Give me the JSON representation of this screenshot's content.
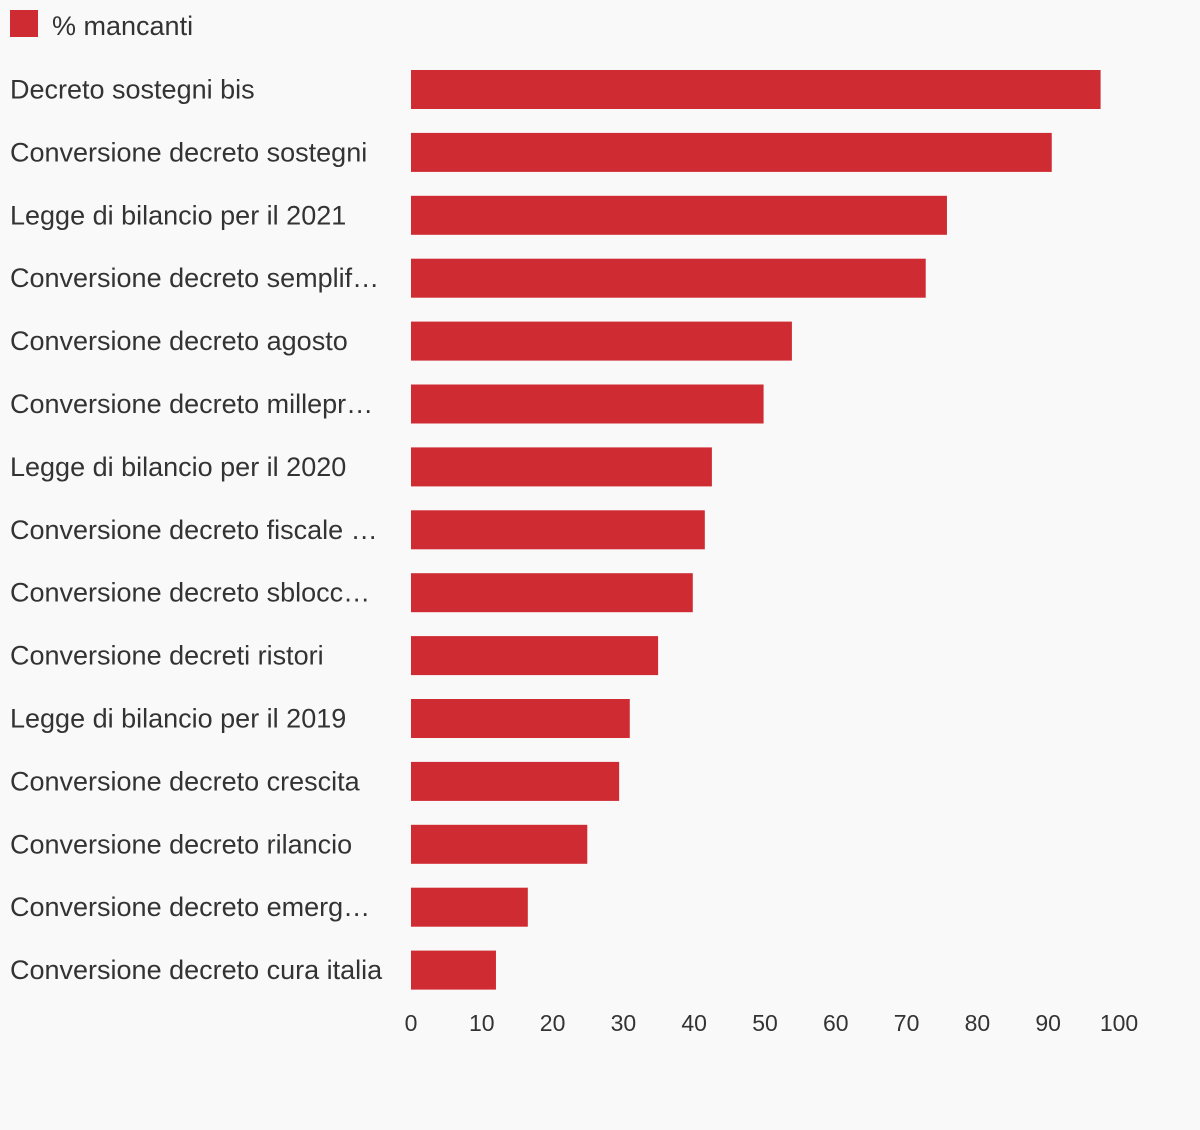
{
  "colors": {
    "background": "#f9f9f9",
    "bar": "#cf2b32",
    "text": "#333333"
  },
  "legend": {
    "label": "% mancanti"
  },
  "chart_data": {
    "type": "bar",
    "orientation": "horizontal",
    "categories": [
      "Decreto sostegni bis",
      "Conversione decreto sostegni",
      "Legge di bilancio per il 2021",
      "Conversione decreto semplif…",
      "Conversione decreto agosto",
      "Conversione decreto millepr…",
      "Legge di bilancio per il 2020",
      "Conversione decreto fiscale …",
      "Conversione decreto sblocc…",
      "Conversione decreti ristori",
      "Legge di bilancio per il 2019",
      "Conversione decreto crescita",
      "Conversione decreto rilancio",
      "Conversione decreto emerg…",
      "Conversione decreto cura italia"
    ],
    "series": [
      {
        "name": "% mancanti",
        "values": [
          97.4,
          90.5,
          75.7,
          72.7,
          53.8,
          49.8,
          42.5,
          41.5,
          39.8,
          34.9,
          30.9,
          29.4,
          24.9,
          16.5,
          12.0
        ]
      }
    ],
    "xlim": [
      0,
      100
    ],
    "xticks": [
      "0",
      "10",
      "20",
      "30",
      "40",
      "50",
      "60",
      "70",
      "80",
      "90",
      "100"
    ],
    "grid": false,
    "legend_position": "top-left"
  }
}
